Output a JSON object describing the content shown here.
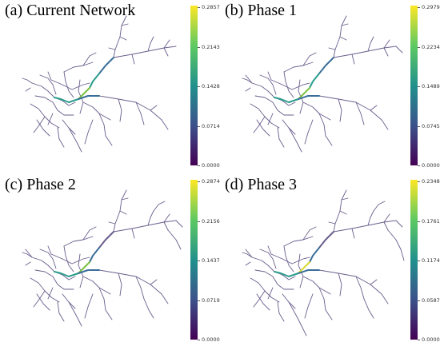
{
  "colormap": [
    "#440154",
    "#3b528b",
    "#21918c",
    "#5ec962",
    "#fde725"
  ],
  "edge_colors": {
    "minor": "#6a5d8c",
    "medium": "#3a6e99",
    "strong": "#2a9d8c",
    "hot": "#7cc243",
    "peak": "#d8d830"
  },
  "panels": [
    {
      "label": "(a)  Current Network",
      "ticks": [
        "0.2857",
        "0.2143",
        "0.1428",
        "0.0714",
        "0.0000"
      ],
      "highlight": [
        "medium",
        "strong",
        "hot",
        "strong",
        "medium"
      ]
    },
    {
      "label": "(b)  Phase 1",
      "ticks": [
        "0.2979",
        "0.2234",
        "0.1489",
        "0.0745",
        "0.0000"
      ],
      "highlight": [
        "medium",
        "strong",
        "hot",
        "strong",
        "medium"
      ]
    },
    {
      "label": "(c)  Phase 2",
      "ticks": [
        "0.2874",
        "0.2156",
        "0.1437",
        "0.0719",
        "0.0000"
      ],
      "highlight": [
        "minor",
        "medium",
        "hot",
        "strong",
        "medium"
      ]
    },
    {
      "label": "(d)  Phase 3",
      "ticks": [
        "0.2348",
        "0.1761",
        "0.1174",
        "0.0587",
        "0.0000"
      ],
      "highlight": [
        "minor",
        "medium",
        "peak",
        "strong",
        "medium"
      ]
    }
  ]
}
